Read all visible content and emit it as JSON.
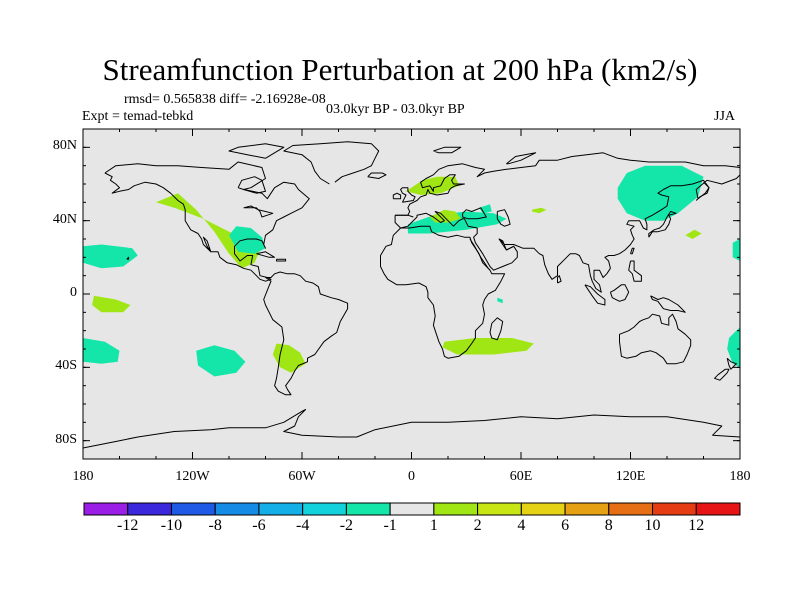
{
  "chart_data": {
    "type": "contour-map",
    "title": "Streamfunction Perturbation at 200 hPa (km2/s)",
    "subtitle_left_stats": "rmsd= 0.565838 diff= -2.16928e-08",
    "subtitle_left": "Expt = temad-tebkd",
    "subtitle_center": "03.0kyr BP - 03.0kyr BP",
    "subtitle_right": "JJA",
    "x_range": [
      -180,
      180
    ],
    "y_range": [
      -90,
      90
    ],
    "x_ticks": [
      {
        "value": -180,
        "label": "180"
      },
      {
        "value": -120,
        "label": "120W"
      },
      {
        "value": -60,
        "label": "60W"
      },
      {
        "value": 0,
        "label": "0"
      },
      {
        "value": 60,
        "label": "60E"
      },
      {
        "value": 120,
        "label": "120E"
      },
      {
        "value": 180,
        "label": "180"
      }
    ],
    "y_ticks": [
      {
        "value": 80,
        "label": "80N"
      },
      {
        "value": 40,
        "label": "40N"
      },
      {
        "value": 0,
        "label": "0"
      },
      {
        "value": -40,
        "label": "40S"
      },
      {
        "value": -80,
        "label": "80S"
      }
    ],
    "colorbar": {
      "colors": [
        "#9a1ee6",
        "#3c28dc",
        "#1e5ae6",
        "#148ce6",
        "#14afe6",
        "#14d2dc",
        "#14e6aa",
        "#e6e6e6",
        "#a0e614",
        "#c8e614",
        "#e6d214",
        "#e6a014",
        "#e66e14",
        "#e63c14",
        "#e61414"
      ],
      "labels": [
        "-12",
        "-10",
        "-8",
        "-6",
        "-4",
        "-2",
        "-1",
        "1",
        "2",
        "4",
        "6",
        "8",
        "10",
        "12"
      ]
    },
    "background_color": "#e6e6e6",
    "anomalies": [
      {
        "name": "pacific-ne-positive",
        "level": "2",
        "color": "#a0e614",
        "points": [
          [
            -140,
            50
          ],
          [
            -128,
            55
          ],
          [
            -118,
            46
          ],
          [
            -108,
            34
          ],
          [
            -100,
            22
          ],
          [
            -93,
            14
          ],
          [
            -86,
            17
          ],
          [
            -83,
            24
          ],
          [
            -98,
            33
          ],
          [
            -114,
            41
          ],
          [
            -130,
            47
          ]
        ]
      },
      {
        "name": "gulf-negative",
        "level": "-1",
        "color": "#14e6aa",
        "points": [
          [
            -100,
            32
          ],
          [
            -96,
            37
          ],
          [
            -88,
            36
          ],
          [
            -82,
            31
          ],
          [
            -80,
            25
          ],
          [
            -86,
            22
          ],
          [
            -95,
            23
          ]
        ]
      },
      {
        "name": "n-atlantic-positive",
        "level": "2",
        "color": "#a0e614",
        "points": [
          [
            -3,
            56
          ],
          [
            6,
            62
          ],
          [
            14,
            64
          ],
          [
            24,
            64
          ],
          [
            26,
            59
          ],
          [
            16,
            55
          ],
          [
            5,
            54
          ]
        ]
      },
      {
        "name": "mediterranean-negative",
        "level": "-1",
        "color": "#14e6aa",
        "points": [
          [
            -2,
            33
          ],
          [
            10,
            33
          ],
          [
            30,
            35
          ],
          [
            47,
            38
          ],
          [
            52,
            41
          ],
          [
            45,
            44
          ],
          [
            30,
            45
          ],
          [
            12,
            43
          ],
          [
            -2,
            38
          ]
        ]
      },
      {
        "name": "balkan-positive",
        "level": "2",
        "color": "#a0e614",
        "points": [
          [
            10,
            42
          ],
          [
            18,
            46
          ],
          [
            24,
            45
          ],
          [
            27,
            41
          ],
          [
            20,
            39
          ],
          [
            13,
            39
          ]
        ]
      },
      {
        "name": "caspian-negative",
        "level": "-1",
        "color": "#14e6aa",
        "points": [
          [
            37,
            47
          ],
          [
            43,
            49
          ],
          [
            44,
            45
          ],
          [
            39,
            44
          ]
        ]
      },
      {
        "name": "central-asia-positive",
        "level": "2",
        "color": "#a0e614",
        "points": [
          [
            66,
            46
          ],
          [
            71,
            47
          ],
          [
            74,
            46
          ],
          [
            70,
            44
          ],
          [
            66,
            45
          ]
        ]
      },
      {
        "name": "ne-asia-negative",
        "level": "-1",
        "color": "#14e6aa",
        "points": [
          [
            113,
            58
          ],
          [
            118,
            66
          ],
          [
            128,
            70
          ],
          [
            148,
            70
          ],
          [
            160,
            64
          ],
          [
            157,
            53
          ],
          [
            146,
            44
          ],
          [
            138,
            40
          ],
          [
            128,
            40
          ],
          [
            118,
            44
          ],
          [
            113,
            52
          ]
        ]
      },
      {
        "name": "nw-pacific-positive",
        "level": "2",
        "color": "#a0e614",
        "points": [
          [
            150,
            32
          ],
          [
            155,
            35
          ],
          [
            159,
            33
          ],
          [
            154,
            30
          ]
        ]
      },
      {
        "name": "central-pacific-negative-north",
        "level": "-1",
        "color": "#14e6aa",
        "points": [
          [
            -180,
            26
          ],
          [
            -170,
            27
          ],
          [
            -153,
            25
          ],
          [
            -150,
            21
          ],
          [
            -158,
            15
          ],
          [
            -170,
            14
          ],
          [
            -180,
            17
          ]
        ]
      },
      {
        "name": "east-pacific-positive",
        "level": "2",
        "color": "#a0e614",
        "points": [
          [
            -174,
            -1
          ],
          [
            -162,
            -3
          ],
          [
            -154,
            -6
          ],
          [
            -158,
            -10
          ],
          [
            -170,
            -10
          ],
          [
            -175,
            -6
          ]
        ]
      },
      {
        "name": "central-pacific-negative-south",
        "level": "-1",
        "color": "#14e6aa",
        "points": [
          [
            -180,
            -24
          ],
          [
            -168,
            -26
          ],
          [
            -160,
            -31
          ],
          [
            -161,
            -37
          ],
          [
            -170,
            -38
          ],
          [
            -180,
            -37
          ]
        ]
      },
      {
        "name": "se-pacific-negative",
        "level": "-1",
        "color": "#14e6aa",
        "points": [
          [
            -118,
            -31
          ],
          [
            -108,
            -28
          ],
          [
            -97,
            -31
          ],
          [
            -91,
            -37
          ],
          [
            -96,
            -43
          ],
          [
            -108,
            -45
          ],
          [
            -117,
            -39
          ]
        ]
      },
      {
        "name": "argentina-positive",
        "level": "2",
        "color": "#a0e614",
        "points": [
          [
            -74,
            -27
          ],
          [
            -67,
            -28
          ],
          [
            -61,
            -32
          ],
          [
            -58,
            -38
          ],
          [
            -66,
            -43
          ],
          [
            -72,
            -40
          ],
          [
            -76,
            -33
          ]
        ]
      },
      {
        "name": "indian-ocean-positive",
        "level": "2",
        "color": "#a0e614",
        "points": [
          [
            18,
            -26
          ],
          [
            35,
            -24
          ],
          [
            55,
            -24
          ],
          [
            67,
            -27
          ],
          [
            63,
            -31
          ],
          [
            45,
            -33
          ],
          [
            25,
            -33
          ],
          [
            17,
            -29
          ]
        ]
      },
      {
        "name": "madagascar-negative",
        "level": "-1",
        "color": "#14e6aa",
        "points": [
          [
            47,
            -2
          ],
          [
            50,
            -3
          ],
          [
            50,
            -5
          ],
          [
            47,
            -4
          ]
        ]
      },
      {
        "name": "east-asia-edge-negative",
        "level": "-1",
        "color": "#14e6aa",
        "points": [
          [
            180,
            18
          ],
          [
            176,
            20
          ],
          [
            176,
            28
          ],
          [
            180,
            30
          ]
        ]
      },
      {
        "name": "tasman-negative",
        "level": "-1",
        "color": "#14e6aa",
        "points": [
          [
            180,
            -18
          ],
          [
            174,
            -24
          ],
          [
            173,
            -30
          ],
          [
            176,
            -38
          ],
          [
            180,
            -40
          ]
        ]
      }
    ]
  }
}
